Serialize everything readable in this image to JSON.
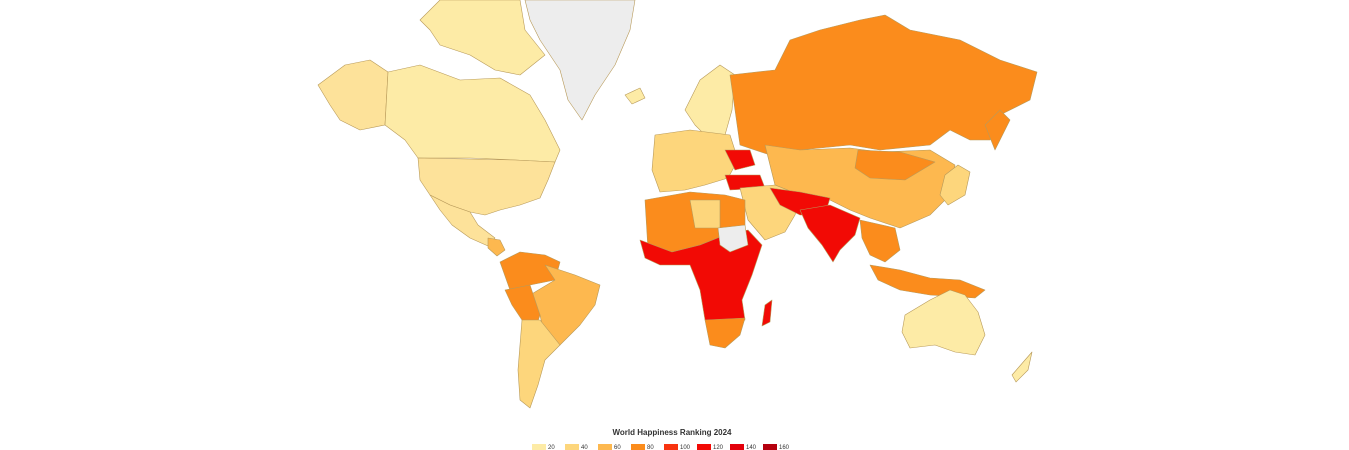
{
  "legend": {
    "title": "World Happiness Ranking 2024",
    "items": [
      {
        "label": "20",
        "color": "#fdeba6"
      },
      {
        "label": "40",
        "color": "#fdd67c"
      },
      {
        "label": "60",
        "color": "#fdb84f"
      },
      {
        "label": "80",
        "color": "#fb8c1c"
      },
      {
        "label": "100",
        "color": "#f8330f"
      },
      {
        "label": "120",
        "color": "#f20a05"
      },
      {
        "label": "140",
        "color": "#e3000b"
      },
      {
        "label": "160",
        "color": "#b4000e"
      }
    ]
  }
}
